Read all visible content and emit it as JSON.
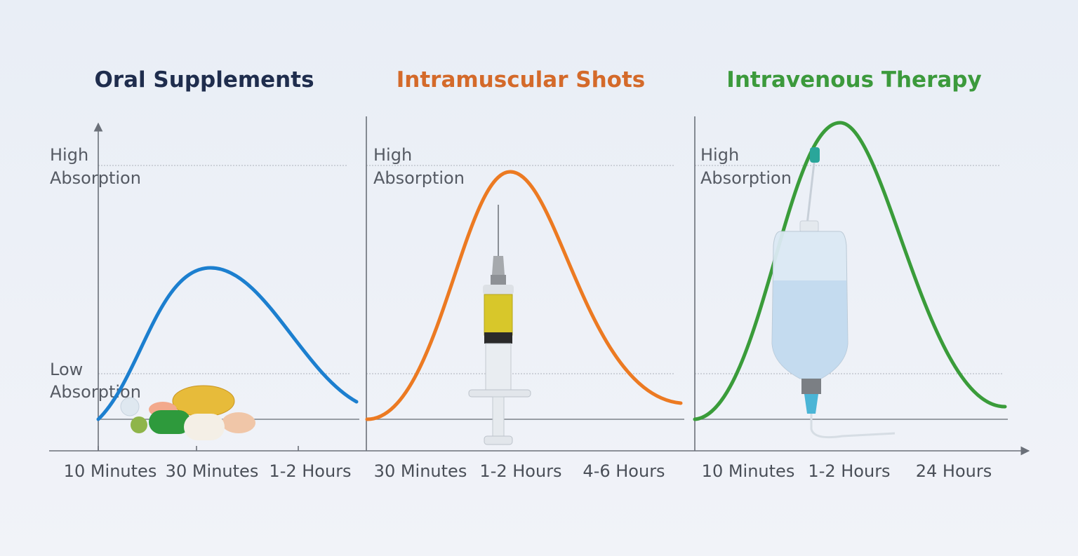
{
  "panels": [
    {
      "title": "Oral Supplements",
      "high_label": [
        "High",
        "Absorption"
      ],
      "low_label": [
        "Low",
        "Absorption"
      ],
      "x_labels": [
        "10 Minutes",
        "30 Minutes",
        "1-2 Hours"
      ]
    },
    {
      "title": "Intramuscular Shots",
      "high_label": [
        "High",
        "Absorption"
      ],
      "x_labels": [
        "30 Minutes",
        "1-2 Hours",
        "4-6 Hours"
      ]
    },
    {
      "title": "Intravenous Therapy",
      "high_label": [
        "High",
        "Absorption"
      ],
      "x_labels": [
        "10 Minutes",
        "1-2 Hours",
        "24 Hours"
      ]
    }
  ]
}
